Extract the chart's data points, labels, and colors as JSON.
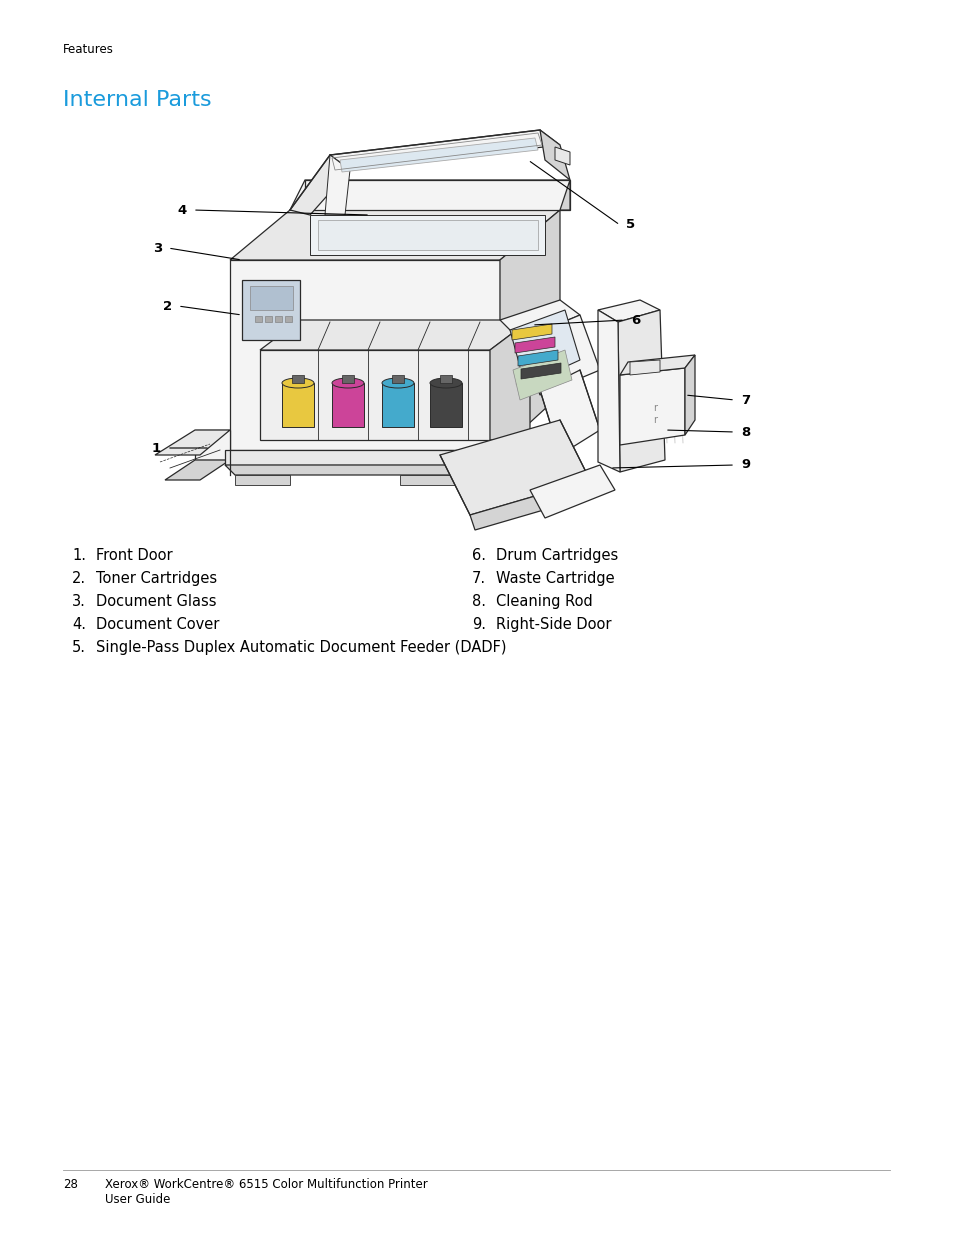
{
  "page_label": "Features",
  "title": "Internal Parts",
  "title_color": "#1a9bdc",
  "background_color": "#ffffff",
  "left_items": [
    [
      "1.",
      "Front Door"
    ],
    [
      "2.",
      "Toner Cartridges"
    ],
    [
      "3.",
      "Document Glass"
    ],
    [
      "4.",
      "Document Cover"
    ],
    [
      "5.",
      "Single-Pass Duplex Automatic Document Feeder (DADF)"
    ]
  ],
  "right_items": [
    [
      "6.",
      "Drum Cartridges"
    ],
    [
      "7.",
      "Waste Cartridge"
    ],
    [
      "8.",
      "Cleaning Rod"
    ],
    [
      "9.",
      "Right-Side Door"
    ]
  ],
  "footer_number": "28",
  "footer_text": "Xerox® WorkCentre® 6515 Color Multifunction Printer",
  "footer_text2": "User Guide",
  "font_family": "DejaVu Sans",
  "page_label_fontsize": 8.5,
  "title_fontsize": 16,
  "list_fontsize": 10.5,
  "footer_fontsize": 8.5,
  "figsize": [
    9.54,
    12.35
  ],
  "dpi": 100,
  "callout_color": "#000000",
  "sketch_color": "#2a2a2a",
  "sketch_lw": 0.9,
  "fill_light": "#f4f4f4",
  "fill_mid": "#e8e8e8",
  "fill_dark": "#d4d4d4",
  "toner_colors": [
    "#e8c840",
    "#cc4499",
    "#44aacc",
    "#444444"
  ],
  "drum_colors": [
    "#e8c840",
    "#cc4499",
    "#44aacc",
    "#444444"
  ]
}
